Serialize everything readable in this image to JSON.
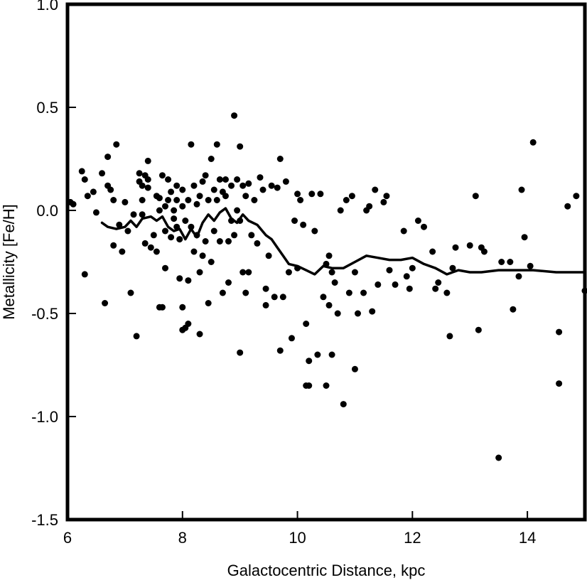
{
  "chart_data": {
    "type": "scatter",
    "title": "",
    "xlabel": "Galactocentric Distance, kpc",
    "ylabel": "Metallicity [Fe/H]",
    "xlim": [
      6,
      15
    ],
    "ylim": [
      -1.5,
      1.0
    ],
    "x_ticks": [
      6,
      8,
      10,
      12,
      14
    ],
    "x_tick_labels": [
      "6",
      "8",
      "10",
      "12",
      "14"
    ],
    "y_ticks": [
      1.0,
      0.5,
      0.0,
      -0.5,
      -1.0,
      -1.5
    ],
    "y_tick_labels": [
      "1.0",
      "0.5",
      "0.0",
      "-0.5",
      "-1.0",
      "-1.5"
    ],
    "grid": false,
    "legend": "none",
    "colors": {
      "points": "#000000",
      "line": "#000000",
      "axes": "#000000"
    },
    "series": [
      {
        "type": "scatter",
        "points": [
          [
            6.05,
            0.04
          ],
          [
            6.1,
            0.03
          ],
          [
            6.25,
            0.19
          ],
          [
            6.3,
            0.15
          ],
          [
            6.3,
            -0.31
          ],
          [
            6.35,
            0.07
          ],
          [
            6.45,
            0.09
          ],
          [
            6.5,
            -0.01
          ],
          [
            6.6,
            0.18
          ],
          [
            6.65,
            -0.45
          ],
          [
            6.7,
            0.12
          ],
          [
            6.7,
            0.26
          ],
          [
            6.75,
            0.1
          ],
          [
            6.8,
            -0.17
          ],
          [
            6.8,
            0.05
          ],
          [
            6.85,
            0.32
          ],
          [
            6.9,
            -0.07
          ],
          [
            6.95,
            -0.2
          ],
          [
            7.0,
            0.04
          ],
          [
            7.05,
            -0.1
          ],
          [
            7.1,
            -0.4
          ],
          [
            7.15,
            -0.02
          ],
          [
            7.2,
            -0.61
          ],
          [
            7.25,
            0.14
          ],
          [
            7.25,
            0.18
          ],
          [
            7.3,
            0.12
          ],
          [
            7.3,
            0.05
          ],
          [
            7.3,
            -0.02
          ],
          [
            7.35,
            -0.16
          ],
          [
            7.35,
            0.17
          ],
          [
            7.4,
            0.24
          ],
          [
            7.4,
            0.15
          ],
          [
            7.4,
            0.11
          ],
          [
            7.45,
            -0.18
          ],
          [
            7.5,
            -0.12
          ],
          [
            7.55,
            0.07
          ],
          [
            7.55,
            -0.2
          ],
          [
            7.6,
            -0.47
          ],
          [
            7.6,
            0.06
          ],
          [
            7.6,
            0.0
          ],
          [
            7.65,
            -0.47
          ],
          [
            7.65,
            0.17
          ],
          [
            7.7,
            -0.1
          ],
          [
            7.7,
            0.02
          ],
          [
            7.7,
            -0.28
          ],
          [
            7.75,
            0.15
          ],
          [
            7.75,
            0.05
          ],
          [
            7.8,
            -0.13
          ],
          [
            7.8,
            0.09
          ],
          [
            7.85,
            -0.04
          ],
          [
            7.85,
            0.0
          ],
          [
            7.9,
            -0.08
          ],
          [
            7.9,
            0.12
          ],
          [
            7.9,
            0.05
          ],
          [
            7.95,
            -0.14
          ],
          [
            7.95,
            -0.33
          ],
          [
            8.0,
            -0.47
          ],
          [
            8.0,
            -0.58
          ],
          [
            8.0,
            0.1
          ],
          [
            8.0,
            0.02
          ],
          [
            8.05,
            -0.05
          ],
          [
            8.05,
            -0.57
          ],
          [
            8.1,
            -0.55
          ],
          [
            8.1,
            -0.34
          ],
          [
            8.1,
            0.05
          ],
          [
            8.15,
            0.32
          ],
          [
            8.15,
            -0.08
          ],
          [
            8.2,
            -0.2
          ],
          [
            8.2,
            0.12
          ],
          [
            8.25,
            0.03
          ],
          [
            8.25,
            -0.12
          ],
          [
            8.3,
            -0.3
          ],
          [
            8.3,
            0.07
          ],
          [
            8.3,
            -0.6
          ],
          [
            8.35,
            0.14
          ],
          [
            8.35,
            -0.22
          ],
          [
            8.4,
            -0.15
          ],
          [
            8.4,
            0.17
          ],
          [
            8.45,
            -0.45
          ],
          [
            8.45,
            0.05
          ],
          [
            8.5,
            0.25
          ],
          [
            8.5,
            -0.25
          ],
          [
            8.55,
            -0.1
          ],
          [
            8.55,
            0.1
          ],
          [
            8.6,
            0.32
          ],
          [
            8.6,
            0.05
          ],
          [
            8.65,
            -0.15
          ],
          [
            8.65,
            0.15
          ],
          [
            8.7,
            -0.4
          ],
          [
            8.7,
            0.09
          ],
          [
            8.75,
            0.07
          ],
          [
            8.75,
            0.15
          ],
          [
            8.8,
            -0.35
          ],
          [
            8.8,
            -0.15
          ],
          [
            8.85,
            -0.05
          ],
          [
            8.85,
            0.12
          ],
          [
            8.9,
            0.46
          ],
          [
            8.9,
            -0.12
          ],
          [
            8.95,
            0.0
          ],
          [
            8.95,
            0.15
          ],
          [
            9.0,
            0.31
          ],
          [
            9.0,
            -0.69
          ],
          [
            9.0,
            -0.05
          ],
          [
            9.05,
            0.12
          ],
          [
            9.05,
            -0.3
          ],
          [
            9.1,
            -0.4
          ],
          [
            9.1,
            0.07
          ],
          [
            9.15,
            0.13
          ],
          [
            9.15,
            -0.3
          ],
          [
            9.2,
            -0.12
          ],
          [
            9.25,
            0.05
          ],
          [
            9.3,
            -0.16
          ],
          [
            9.35,
            0.16
          ],
          [
            9.4,
            0.1
          ],
          [
            9.45,
            -0.46
          ],
          [
            9.45,
            -0.38
          ],
          [
            9.5,
            -0.22
          ],
          [
            9.55,
            0.12
          ],
          [
            9.6,
            -0.42
          ],
          [
            9.65,
            0.11
          ],
          [
            9.7,
            0.25
          ],
          [
            9.7,
            -0.68
          ],
          [
            9.75,
            -0.42
          ],
          [
            9.8,
            0.14
          ],
          [
            9.85,
            -0.3
          ],
          [
            9.9,
            -0.62
          ],
          [
            9.95,
            -0.05
          ],
          [
            10.0,
            0.08
          ],
          [
            10.0,
            -0.28
          ],
          [
            10.05,
            0.05
          ],
          [
            10.1,
            -0.07
          ],
          [
            10.15,
            -0.85
          ],
          [
            10.15,
            -0.55
          ],
          [
            10.2,
            -0.85
          ],
          [
            10.2,
            -0.73
          ],
          [
            10.25,
            0.08
          ],
          [
            10.3,
            -0.1
          ],
          [
            10.35,
            -0.7
          ],
          [
            10.4,
            0.08
          ],
          [
            10.45,
            -0.42
          ],
          [
            10.5,
            -0.26
          ],
          [
            10.5,
            -0.85
          ],
          [
            10.55,
            -0.46
          ],
          [
            10.55,
            -0.22
          ],
          [
            10.6,
            -0.7
          ],
          [
            10.6,
            -0.3
          ],
          [
            10.65,
            -0.35
          ],
          [
            10.7,
            -0.5
          ],
          [
            10.75,
            0.0
          ],
          [
            10.8,
            -0.94
          ],
          [
            10.85,
            0.05
          ],
          [
            10.9,
            -0.4
          ],
          [
            10.95,
            0.07
          ],
          [
            11.0,
            -0.77
          ],
          [
            11.0,
            -0.3
          ],
          [
            11.05,
            -0.5
          ],
          [
            11.15,
            -0.4
          ],
          [
            11.2,
            0.0
          ],
          [
            11.25,
            0.02
          ],
          [
            11.3,
            -0.49
          ],
          [
            11.35,
            0.1
          ],
          [
            11.4,
            -0.36
          ],
          [
            11.5,
            0.04
          ],
          [
            11.55,
            0.07
          ],
          [
            11.6,
            -0.29
          ],
          [
            11.7,
            -0.36
          ],
          [
            11.85,
            -0.1
          ],
          [
            11.9,
            -0.32
          ],
          [
            11.95,
            -0.38
          ],
          [
            12.0,
            -0.28
          ],
          [
            12.1,
            -0.05
          ],
          [
            12.2,
            -0.08
          ],
          [
            12.35,
            -0.2
          ],
          [
            12.4,
            -0.38
          ],
          [
            12.45,
            -0.35
          ],
          [
            12.6,
            -0.4
          ],
          [
            12.65,
            -0.61
          ],
          [
            12.7,
            -0.28
          ],
          [
            12.75,
            -0.18
          ],
          [
            13.0,
            -0.17
          ],
          [
            13.1,
            0.07
          ],
          [
            13.15,
            -0.58
          ],
          [
            13.2,
            -0.18
          ],
          [
            13.25,
            -0.2
          ],
          [
            13.5,
            -1.2
          ],
          [
            13.55,
            -0.25
          ],
          [
            13.7,
            -0.25
          ],
          [
            13.75,
            -0.48
          ],
          [
            13.85,
            -0.32
          ],
          [
            13.9,
            0.1
          ],
          [
            13.95,
            -0.13
          ],
          [
            14.05,
            -0.27
          ],
          [
            14.1,
            0.33
          ],
          [
            14.55,
            -0.59
          ],
          [
            14.55,
            -0.84
          ],
          [
            14.7,
            0.02
          ],
          [
            14.85,
            0.07
          ],
          [
            15.0,
            -0.39
          ]
        ]
      },
      {
        "type": "line",
        "points": [
          [
            6.6,
            -0.06
          ],
          [
            6.7,
            -0.08
          ],
          [
            6.85,
            -0.09
          ],
          [
            7.0,
            -0.08
          ],
          [
            7.1,
            -0.05
          ],
          [
            7.2,
            -0.08
          ],
          [
            7.3,
            -0.04
          ],
          [
            7.45,
            -0.03
          ],
          [
            7.55,
            -0.05
          ],
          [
            7.65,
            -0.03
          ],
          [
            7.75,
            -0.08
          ],
          [
            7.85,
            -0.1
          ],
          [
            7.95,
            -0.09
          ],
          [
            8.05,
            -0.14
          ],
          [
            8.15,
            -0.09
          ],
          [
            8.25,
            -0.13
          ],
          [
            8.35,
            -0.06
          ],
          [
            8.45,
            -0.02
          ],
          [
            8.55,
            -0.05
          ],
          [
            8.65,
            -0.01
          ],
          [
            8.75,
            0.01
          ],
          [
            8.85,
            -0.04
          ],
          [
            8.95,
            -0.06
          ],
          [
            9.05,
            -0.02
          ],
          [
            9.15,
            -0.05
          ],
          [
            9.3,
            -0.07
          ],
          [
            9.45,
            -0.12
          ],
          [
            9.55,
            -0.14
          ],
          [
            9.65,
            -0.18
          ],
          [
            9.75,
            -0.22
          ],
          [
            9.85,
            -0.26
          ],
          [
            10.0,
            -0.27
          ],
          [
            10.15,
            -0.29
          ],
          [
            10.3,
            -0.31
          ],
          [
            10.45,
            -0.27
          ],
          [
            10.6,
            -0.28
          ],
          [
            10.8,
            -0.28
          ],
          [
            11.0,
            -0.25
          ],
          [
            11.2,
            -0.22
          ],
          [
            11.4,
            -0.23
          ],
          [
            11.6,
            -0.24
          ],
          [
            11.8,
            -0.24
          ],
          [
            12.0,
            -0.23
          ],
          [
            12.2,
            -0.26
          ],
          [
            12.4,
            -0.28
          ],
          [
            12.6,
            -0.31
          ],
          [
            12.8,
            -0.29
          ],
          [
            13.0,
            -0.3
          ],
          [
            13.2,
            -0.3
          ],
          [
            13.5,
            -0.29
          ],
          [
            13.8,
            -0.29
          ],
          [
            14.1,
            -0.29
          ],
          [
            14.5,
            -0.3
          ],
          [
            15.0,
            -0.3
          ]
        ]
      }
    ]
  }
}
